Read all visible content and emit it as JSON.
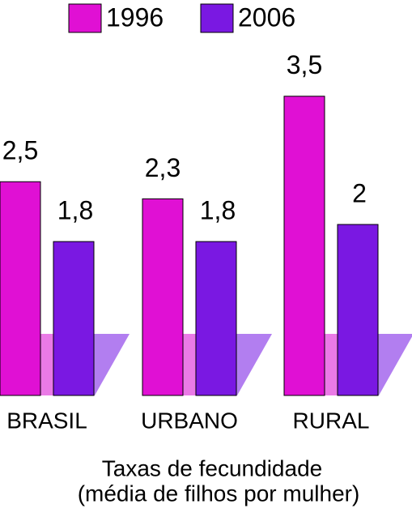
{
  "chart_data": {
    "type": "bar",
    "categories": [
      "BRASIL",
      "URBANO",
      "RURAL"
    ],
    "series": [
      {
        "name": "1996",
        "color": "#e010d4",
        "values": [
          2.5,
          2.3,
          3.5
        ],
        "value_labels": [
          "2,5",
          "2,3",
          "3,5"
        ]
      },
      {
        "name": "2006",
        "color": "#7a18e2",
        "values": [
          1.8,
          1.8,
          2
        ],
        "value_labels": [
          "1,8",
          "1,8",
          "2"
        ]
      }
    ],
    "ylim": [
      0,
      4
    ],
    "xlabel": [
      "Taxas de fecundidade",
      "(média de filhos por mulher)"
    ],
    "grid": false
  }
}
